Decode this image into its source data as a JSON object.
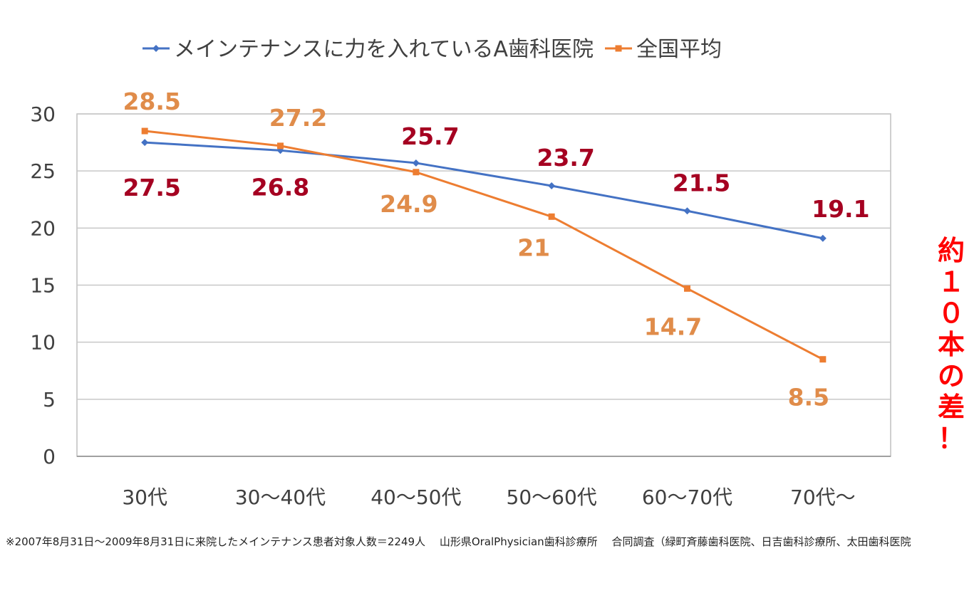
{
  "chart_data": {
    "type": "line",
    "categories": [
      "30代",
      "30～40代",
      "40～50代",
      "50～60代",
      "60～70代",
      "70代～"
    ],
    "series": [
      {
        "name": "メインテナンスに力を入れているA歯科医院",
        "values": [
          27.5,
          26.8,
          25.7,
          23.7,
          21.5,
          19.1
        ],
        "labels": [
          "27.5",
          "26.8",
          "25.7",
          "23.7",
          "21.5",
          "19.1"
        ],
        "color": "#4472c4",
        "label_color": "#a50021"
      },
      {
        "name": "全国平均",
        "values": [
          28.5,
          27.2,
          24.9,
          21,
          14.7,
          8.5
        ],
        "labels": [
          "28.5",
          "27.2",
          "24.9",
          "21",
          "14.7",
          "8.5"
        ],
        "color": "#ed7d31",
        "label_color": "#e08c4a"
      }
    ],
    "ylim": [
      0,
      30
    ],
    "yticks": [
      "0",
      "5",
      "10",
      "15",
      "20",
      "25",
      "30"
    ],
    "grid": true,
    "legend": "top"
  },
  "annotation": "約\n１\n０\n本\nの\n差\n！",
  "footnote": "※2007年8月31日～2009年8月31日に来院したメインテナンス患者対象人数＝2249人　 山形県OralPhysician歯科診療所　 合同調査（緑町斉藤歯科医院、日吉歯科診療所、太田歯科医院"
}
